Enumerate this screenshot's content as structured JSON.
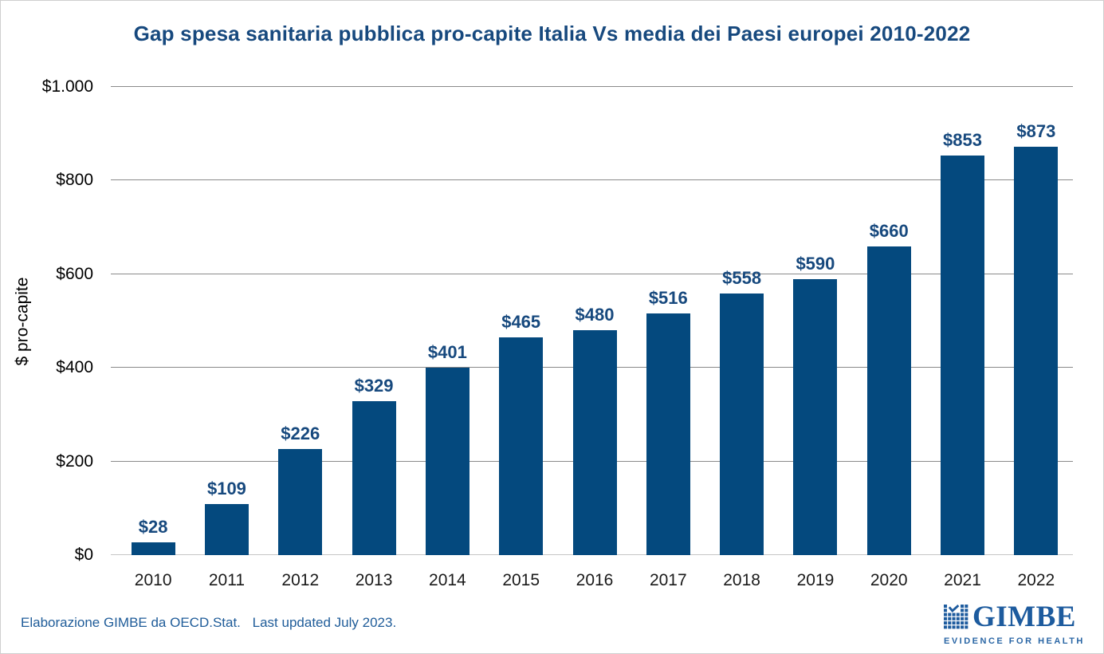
{
  "title": "Gap spesa sanitaria pubblica pro-capite Italia Vs media dei Paesi europei 2010-2022",
  "footer": {
    "source_note": "Elaborazione GIMBE da OECD.Stat.",
    "updated_note": "Last updated July 2023."
  },
  "logo": {
    "wordmark": "GIMBE",
    "tagline": "EVIDENCE FOR HEALTH",
    "grid_check_icon_color": "#1D5B9E"
  },
  "colors": {
    "bar": "#04497E",
    "title_text": "#17497E",
    "data_label": "#17497E",
    "gridline": "#8a8a8a",
    "axis_baseline": "#c6c6c6",
    "footer_text": "#1F5C99",
    "logo_blue": "#1D5B9E"
  },
  "chart_data": {
    "type": "bar",
    "title": "Gap spesa sanitaria pubblica pro-capite Italia Vs media dei Paesi europei 2010-2022",
    "categories": [
      "2010",
      "2011",
      "2012",
      "2013",
      "2014",
      "2015",
      "2016",
      "2017",
      "2018",
      "2019",
      "2020",
      "2021",
      "2022"
    ],
    "values": [
      28,
      109,
      226,
      329,
      401,
      465,
      480,
      516,
      558,
      590,
      660,
      853,
      873
    ],
    "data_labels": [
      "$28",
      "$109",
      "$226",
      "$329",
      "$401",
      "$465",
      "$480",
      "$516",
      "$558",
      "$590",
      "$660",
      "$853",
      "$873"
    ],
    "xlabel": "",
    "ylabel": "$ pro-capite",
    "ylim": [
      0,
      1000
    ],
    "yticks": [
      {
        "value": 0,
        "label": "$0"
      },
      {
        "value": 200,
        "label": "$200"
      },
      {
        "value": 400,
        "label": "$400"
      },
      {
        "value": 600,
        "label": "$600"
      },
      {
        "value": 800,
        "label": "$800"
      },
      {
        "value": 1000,
        "label": "$1.000"
      }
    ],
    "grid": "horizontal",
    "legend": "none",
    "bar_color": "#04497E"
  }
}
